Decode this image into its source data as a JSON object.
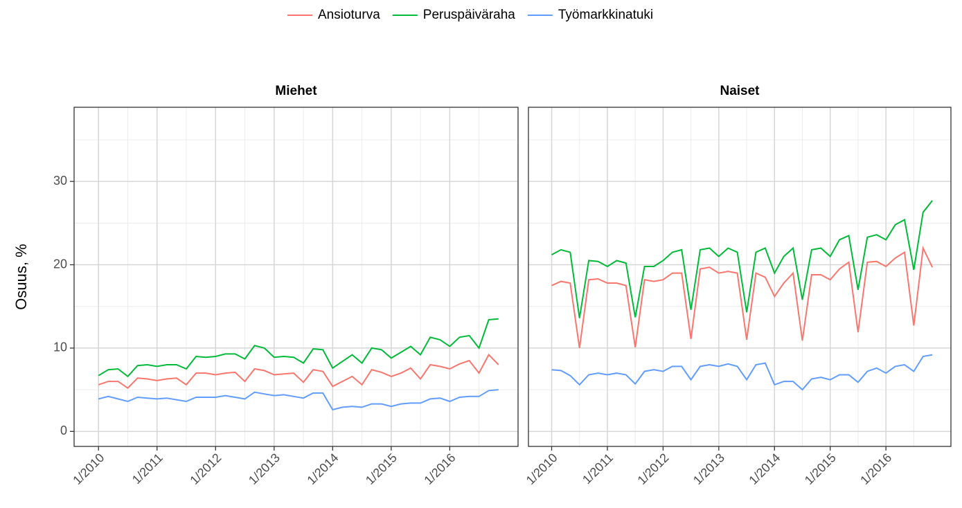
{
  "chart_data": [
    {
      "type": "line",
      "title": "Miehet",
      "ylabel": "Osuus, %",
      "x": [
        "1/2010",
        "3/2010",
        "5/2010",
        "7/2010",
        "9/2010",
        "11/2010",
        "1/2011",
        "3/2011",
        "5/2011",
        "7/2011",
        "9/2011",
        "11/2011",
        "1/2012",
        "3/2012",
        "5/2012",
        "7/2012",
        "9/2012",
        "11/2012",
        "1/2013",
        "3/2013",
        "5/2013",
        "7/2013",
        "9/2013",
        "11/2013",
        "1/2014",
        "3/2014",
        "5/2014",
        "7/2014",
        "9/2014",
        "11/2014",
        "1/2015",
        "3/2015",
        "5/2015",
        "7/2015",
        "9/2015",
        "11/2015",
        "1/2016",
        "3/2016",
        "5/2016",
        "7/2016",
        "9/2016",
        "11/2016"
      ],
      "series": [
        {
          "name": "Ansioturva",
          "color": "#f8766d",
          "values": [
            5.6,
            6.0,
            6.0,
            5.2,
            6.4,
            6.3,
            6.1,
            6.3,
            6.4,
            5.6,
            7.0,
            7.0,
            6.8,
            7.0,
            7.1,
            6.0,
            7.5,
            7.3,
            6.8,
            6.9,
            7.0,
            5.9,
            7.4,
            7.2,
            5.4,
            6.0,
            6.6,
            5.6,
            7.4,
            7.1,
            6.6,
            7.0,
            7.6,
            6.3,
            8.0,
            7.8,
            7.5,
            8.1,
            8.5,
            7.0,
            9.2,
            8.0
          ]
        },
        {
          "name": "Peruspäiväraha",
          "color": "#00ba38",
          "values": [
            6.7,
            7.4,
            7.5,
            6.6,
            7.9,
            8.0,
            7.8,
            8.0,
            8.0,
            7.5,
            9.0,
            8.9,
            9.0,
            9.3,
            9.3,
            8.7,
            10.3,
            10.0,
            8.9,
            9.0,
            8.9,
            8.2,
            9.9,
            9.8,
            7.6,
            8.4,
            9.2,
            8.2,
            10.0,
            9.8,
            8.8,
            9.5,
            10.2,
            9.2,
            11.3,
            11.0,
            10.2,
            11.3,
            11.5,
            10.0,
            13.4,
            13.5
          ]
        },
        {
          "name": "Työmarkkinatuki",
          "color": "#619cff",
          "values": [
            3.9,
            4.2,
            3.9,
            3.6,
            4.1,
            4.0,
            3.9,
            4.0,
            3.8,
            3.6,
            4.1,
            4.1,
            4.1,
            4.3,
            4.1,
            3.9,
            4.7,
            4.5,
            4.3,
            4.4,
            4.2,
            4.0,
            4.6,
            4.6,
            2.6,
            2.9,
            3.0,
            2.9,
            3.3,
            3.3,
            3.0,
            3.3,
            3.4,
            3.4,
            3.9,
            4.0,
            3.6,
            4.1,
            4.2,
            4.2,
            4.9,
            5.0
          ]
        }
      ],
      "xlim": [
        "8/2009",
        "3/2017"
      ],
      "xticks": [
        "1/2010",
        "1/2011",
        "1/2012",
        "1/2013",
        "1/2014",
        "1/2015",
        "1/2016"
      ],
      "minor_xticks": [
        "7/2010",
        "7/2011",
        "7/2012",
        "7/2013",
        "7/2014",
        "7/2015",
        "7/2016"
      ],
      "ylim": [
        -1.8,
        38.9
      ],
      "yticks": [
        0,
        10,
        20,
        30
      ],
      "minor_yticks": [
        5,
        15,
        25,
        35
      ],
      "grid": true
    },
    {
      "type": "line",
      "title": "Naiset",
      "x": [
        "1/2010",
        "3/2010",
        "5/2010",
        "7/2010",
        "9/2010",
        "11/2010",
        "1/2011",
        "3/2011",
        "5/2011",
        "7/2011",
        "9/2011",
        "11/2011",
        "1/2012",
        "3/2012",
        "5/2012",
        "7/2012",
        "9/2012",
        "11/2012",
        "1/2013",
        "3/2013",
        "5/2013",
        "7/2013",
        "9/2013",
        "11/2013",
        "1/2014",
        "3/2014",
        "5/2014",
        "7/2014",
        "9/2014",
        "11/2014",
        "1/2015",
        "3/2015",
        "5/2015",
        "7/2015",
        "9/2015",
        "11/2015",
        "1/2016",
        "3/2016",
        "5/2016",
        "7/2016",
        "9/2016",
        "11/2016"
      ],
      "series": [
        {
          "name": "Ansioturva",
          "color": "#f8766d",
          "values": [
            17.5,
            18.0,
            17.8,
            10.0,
            18.2,
            18.3,
            17.8,
            17.8,
            17.5,
            10.1,
            18.2,
            18.0,
            18.2,
            19.0,
            19.0,
            11.1,
            19.5,
            19.7,
            19.0,
            19.2,
            19.0,
            11.0,
            19.0,
            18.5,
            16.2,
            17.8,
            19.0,
            10.9,
            18.8,
            18.8,
            18.2,
            19.5,
            20.3,
            11.9,
            20.3,
            20.4,
            19.8,
            20.8,
            21.5,
            12.7,
            22.0,
            19.7
          ]
        },
        {
          "name": "Peruspäiväraha",
          "color": "#00ba38",
          "values": [
            21.2,
            21.8,
            21.5,
            13.6,
            20.5,
            20.4,
            19.8,
            20.5,
            20.2,
            13.7,
            19.8,
            19.8,
            20.5,
            21.5,
            21.8,
            14.6,
            21.8,
            22.0,
            21.0,
            22.0,
            21.5,
            14.3,
            21.5,
            22.0,
            19.0,
            21.0,
            22.0,
            15.8,
            21.8,
            22.0,
            21.0,
            23.0,
            23.5,
            17.0,
            23.3,
            23.6,
            23.0,
            24.8,
            25.4,
            19.4,
            26.3,
            27.7
          ]
        },
        {
          "name": "Työmarkkinatuki",
          "color": "#619cff",
          "values": [
            7.4,
            7.3,
            6.7,
            5.6,
            6.8,
            7.0,
            6.8,
            7.0,
            6.8,
            5.7,
            7.2,
            7.4,
            7.2,
            7.8,
            7.8,
            6.2,
            7.8,
            8.0,
            7.8,
            8.1,
            7.8,
            6.2,
            8.0,
            8.2,
            5.6,
            6.0,
            6.0,
            5.0,
            6.3,
            6.5,
            6.2,
            6.8,
            6.8,
            5.9,
            7.2,
            7.6,
            7.0,
            7.8,
            8.0,
            7.2,
            9.0,
            9.2
          ]
        }
      ],
      "xlim": [
        "8/2009",
        "3/2017"
      ],
      "xticks": [
        "1/2010",
        "1/2011",
        "1/2012",
        "1/2013",
        "1/2014",
        "1/2015",
        "1/2016"
      ],
      "minor_xticks": [
        "7/2010",
        "7/2011",
        "7/2012",
        "7/2013",
        "7/2014",
        "7/2015",
        "7/2016"
      ],
      "ylim": [
        -1.8,
        38.9
      ],
      "yticks": [
        0,
        10,
        20,
        30
      ],
      "minor_yticks": [
        5,
        15,
        25,
        35
      ],
      "grid": true
    }
  ]
}
